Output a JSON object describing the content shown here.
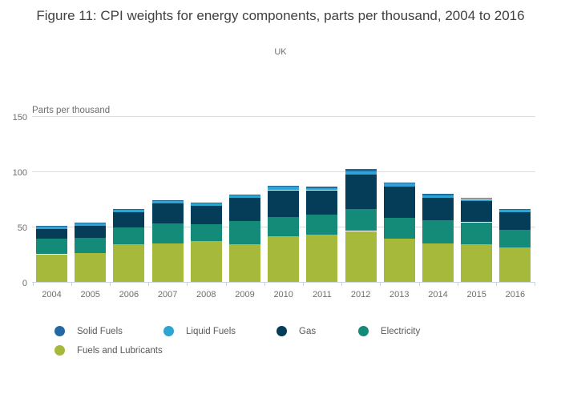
{
  "title": "Figure 11: CPI weights for energy components, parts per thousand, 2004 to 2016",
  "subtitle": "UK",
  "chart_data": {
    "type": "bar",
    "stacked": true,
    "title": "Figure 11: CPI weights for energy components, parts per thousand, 2004 to 2016",
    "subtitle": "UK",
    "ylabel": "Parts per thousand",
    "xlabel": "",
    "ylim": [
      0,
      150
    ],
    "y_ticks": [
      0,
      50,
      100,
      150
    ],
    "grid": true,
    "legend_position": "bottom",
    "categories": [
      "2004",
      "2005",
      "2006",
      "2007",
      "2008",
      "2009",
      "2010",
      "2011",
      "2012",
      "2013",
      "2014",
      "2015",
      "2016"
    ],
    "series": [
      {
        "name": "Fuels and Lubricants",
        "color": "#a6b93a",
        "values": [
          25,
          26,
          34,
          35,
          37,
          34,
          41,
          43,
          46,
          39,
          35,
          34,
          31
        ]
      },
      {
        "name": "Electricity",
        "color": "#148b78",
        "values": [
          14,
          14,
          15,
          18,
          15,
          21,
          18,
          18,
          20,
          19,
          21,
          20,
          16
        ]
      },
      {
        "name": "Gas",
        "color": "#053c58",
        "values": [
          9,
          11,
          14,
          18,
          17,
          21,
          24,
          22,
          31,
          28,
          20,
          19,
          16
        ]
      },
      {
        "name": "Liquid Fuels",
        "color": "#2ea4d2",
        "values": [
          2,
          2,
          2,
          2,
          2,
          2,
          3,
          2,
          3,
          3,
          2,
          2,
          2
        ]
      },
      {
        "name": "Solid Fuels",
        "color": "#2368a2",
        "values": [
          1,
          1,
          1,
          1,
          1,
          1,
          1,
          1,
          2,
          1,
          2,
          1,
          1
        ]
      }
    ],
    "stack_order_bottom_to_top": [
      "Fuels and Lubricants",
      "Electricity",
      "Gas",
      "Liquid Fuels",
      "Solid Fuels"
    ],
    "legend_order": [
      "Solid Fuels",
      "Liquid Fuels",
      "Gas",
      "Electricity",
      "Fuels and Lubricants"
    ]
  },
  "colors": {
    "title_text": "#414042",
    "axis_text": "#6e6e6e",
    "legend_text": "#595959",
    "gridline": "#dcdcdc",
    "axis_line": "#c8d4e3",
    "background": "#ffffff"
  }
}
